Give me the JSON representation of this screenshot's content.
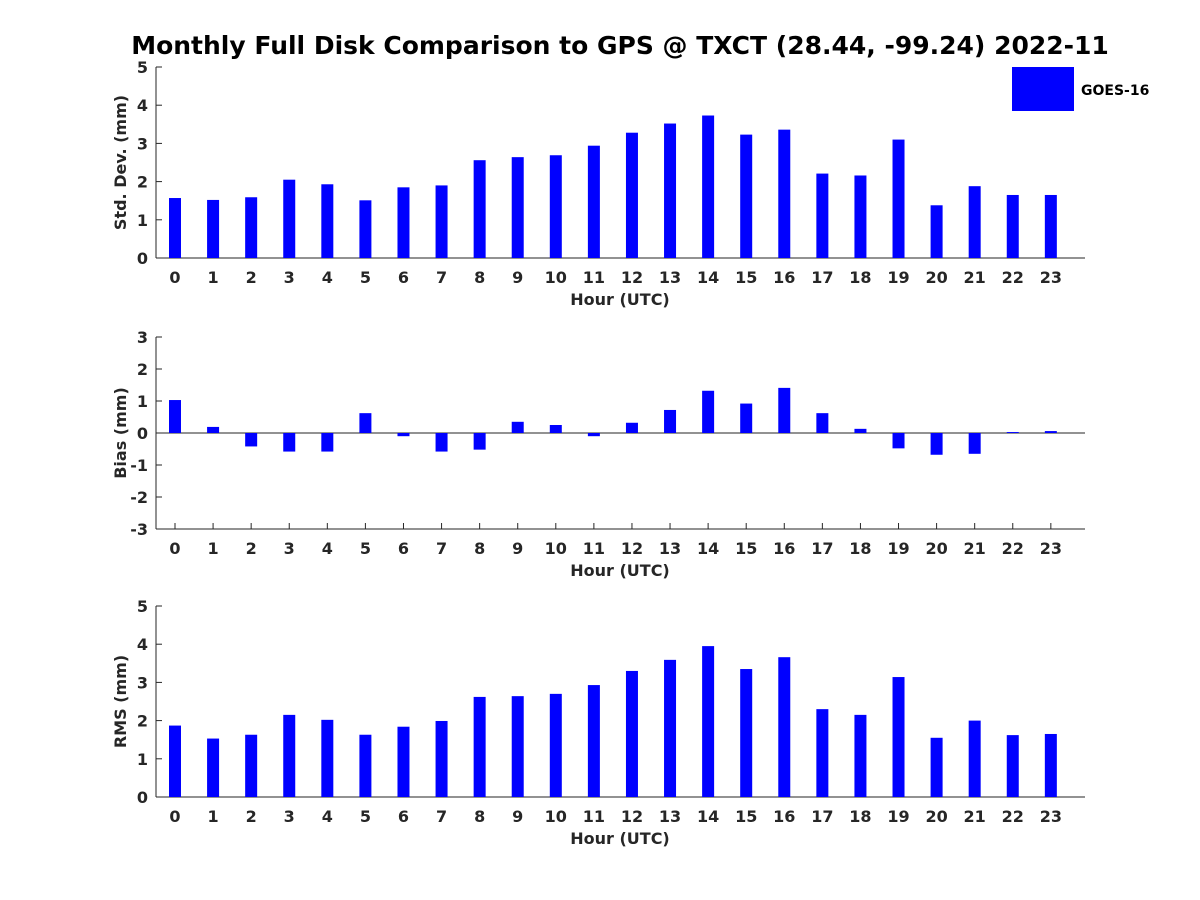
{
  "title": "Monthly Full Disk Comparison to GPS @ TXCT (28.44, -99.24) 2022-11",
  "legend": {
    "label": "GOES-16",
    "color": "#0000ff",
    "placement": "top-right"
  },
  "chart_data": [
    {
      "type": "bar",
      "xlabel": "Hour (UTC)",
      "ylabel": "Std. Dev. (mm)",
      "ylim": [
        0,
        5
      ],
      "yticks": [
        0,
        1,
        2,
        3,
        4,
        5
      ],
      "categories": [
        "0",
        "1",
        "2",
        "3",
        "4",
        "5",
        "6",
        "7",
        "8",
        "9",
        "10",
        "11",
        "12",
        "13",
        "14",
        "15",
        "16",
        "17",
        "18",
        "19",
        "20",
        "21",
        "22",
        "23"
      ],
      "series": [
        {
          "name": "GOES-16",
          "values": [
            1.57,
            1.52,
            1.59,
            2.05,
            1.93,
            1.51,
            1.85,
            1.9,
            2.56,
            2.64,
            2.69,
            2.94,
            3.28,
            3.52,
            3.73,
            3.23,
            3.36,
            2.21,
            2.16,
            3.1,
            1.38,
            1.88,
            1.65,
            1.65
          ]
        }
      ],
      "grid": false
    },
    {
      "type": "bar",
      "xlabel": "Hour (UTC)",
      "ylabel": "Bias (mm)",
      "ylim": [
        -3,
        3
      ],
      "yticks": [
        -3,
        -2,
        -1,
        0,
        1,
        2,
        3
      ],
      "categories": [
        "0",
        "1",
        "2",
        "3",
        "4",
        "5",
        "6",
        "7",
        "8",
        "9",
        "10",
        "11",
        "12",
        "13",
        "14",
        "15",
        "16",
        "17",
        "18",
        "19",
        "20",
        "21",
        "22",
        "23"
      ],
      "series": [
        {
          "name": "GOES-16",
          "values": [
            1.03,
            0.19,
            -0.42,
            -0.58,
            -0.58,
            0.62,
            -0.1,
            -0.58,
            -0.52,
            0.35,
            0.25,
            -0.1,
            0.32,
            0.72,
            1.32,
            0.92,
            1.41,
            0.62,
            0.13,
            -0.48,
            -0.68,
            -0.65,
            0.03,
            0.06
          ]
        }
      ],
      "zero_line": true,
      "grid": false
    },
    {
      "type": "bar",
      "xlabel": "Hour (UTC)",
      "ylabel": "RMS (mm)",
      "ylim": [
        0,
        5
      ],
      "yticks": [
        0,
        1,
        2,
        3,
        4,
        5
      ],
      "categories": [
        "0",
        "1",
        "2",
        "3",
        "4",
        "5",
        "6",
        "7",
        "8",
        "9",
        "10",
        "11",
        "12",
        "13",
        "14",
        "15",
        "16",
        "17",
        "18",
        "19",
        "20",
        "21",
        "22",
        "23"
      ],
      "series": [
        {
          "name": "GOES-16",
          "values": [
            1.87,
            1.53,
            1.63,
            2.15,
            2.02,
            1.63,
            1.84,
            1.99,
            2.62,
            2.64,
            2.7,
            2.93,
            3.3,
            3.59,
            3.95,
            3.35,
            3.66,
            2.3,
            2.15,
            3.14,
            1.55,
            2.0,
            1.62,
            1.65
          ]
        }
      ],
      "grid": false
    }
  ]
}
